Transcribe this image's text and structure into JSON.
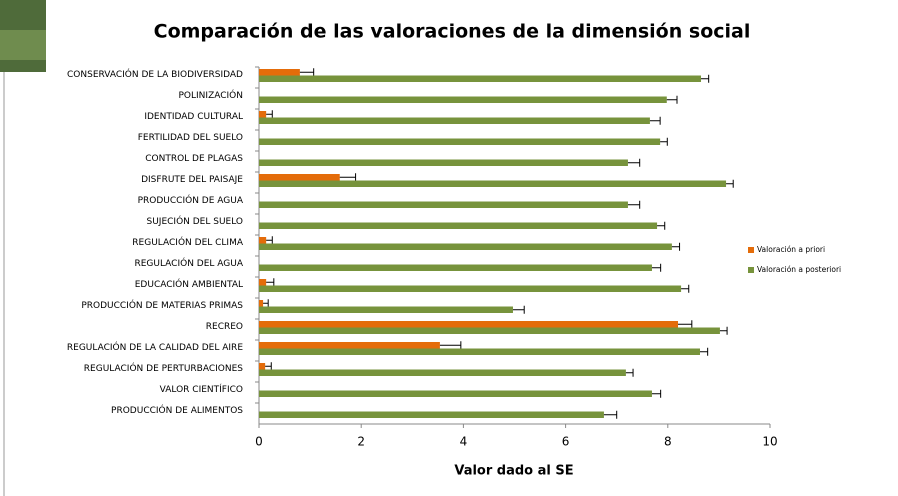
{
  "chart_data": {
    "type": "bar",
    "orientation": "horizontal",
    "title": "Comparación de las valoraciones de la dimensión social",
    "xlabel": "Valor dado al SE",
    "categories": [
      "CONSERVACIÓN DE LA BIODIVERSIDAD",
      "POLINIZACIÓN",
      "IDENTIDAD CULTURAL",
      "FERTILIDAD DEL SUELO",
      "CONTROL DE PLAGAS",
      "DISFRUTE DEL PAISAJE",
      "PRODUCCIÓN DE AGUA",
      "SUJECIÓN DEL SUELO",
      "REGULACIÓN DEL CLIMA",
      "REGULACIÓN DEL AGUA",
      "EDUCACIÓN AMBIENTAL",
      "PRODUCCIÓN DE MATERIAS  PRIMAS",
      "RECREO",
      "REGULACIÓN DE LA CALIDAD DEL AIRE",
      "REGULACIÓN DE PERTURBACIONES",
      "VALOR CIENTÍFICO",
      "PRODUCCIÓN DE ALIMENTOS"
    ],
    "series": [
      {
        "name": "Valoración a priori",
        "color": "#e46c0a",
        "values": [
          0.8,
          0,
          0.14,
          0,
          0,
          1.58,
          0,
          0,
          0.14,
          0,
          0.14,
          0.08,
          8.2,
          3.54,
          0.12,
          0,
          0
        ],
        "errors": [
          0.27,
          0,
          0.12,
          0,
          0,
          0.31,
          0,
          0,
          0.12,
          0,
          0.15,
          0.1,
          0.27,
          0.41,
          0.12,
          0,
          0
        ]
      },
      {
        "name": "Valoración a posteriori",
        "color": "#77933c",
        "values": [
          8.65,
          7.98,
          7.65,
          7.85,
          7.22,
          9.14,
          7.22,
          7.79,
          8.08,
          7.69,
          8.26,
          4.97,
          9.02,
          8.63,
          7.18,
          7.69,
          6.75
        ],
        "errors": [
          0.15,
          0.2,
          0.2,
          0.14,
          0.23,
          0.14,
          0.23,
          0.15,
          0.15,
          0.17,
          0.15,
          0.22,
          0.14,
          0.15,
          0.14,
          0.17,
          0.25
        ]
      }
    ],
    "xlim": [
      0,
      10
    ],
    "xticks": [
      0,
      2,
      4,
      6,
      8,
      10
    ],
    "grid": false,
    "legend": "right"
  }
}
